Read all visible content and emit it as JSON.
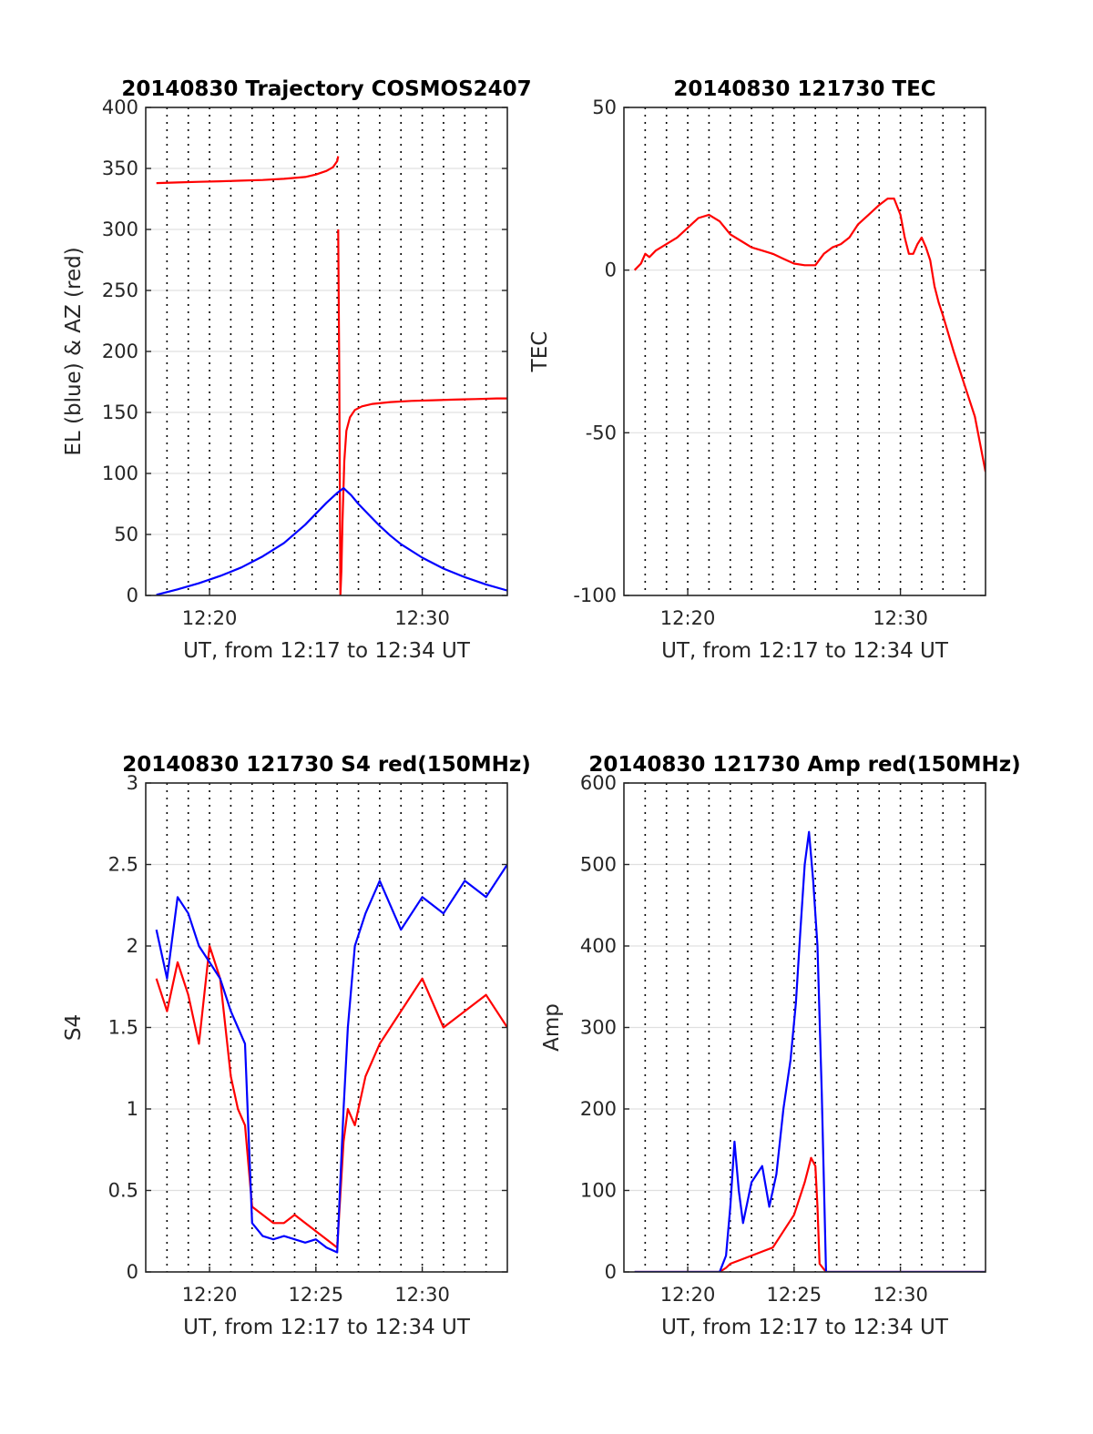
{
  "figure": {
    "panels": [
      {
        "id": "trajectory",
        "title": "20140830 Trajectory COSMOS2407",
        "xlabel": "UT, from 12:17 to 12:34 UT",
        "ylabel": "EL (blue) & AZ (red)",
        "ylim": [
          0,
          400
        ],
        "yticks": [
          "0",
          "50",
          "100",
          "150",
          "200",
          "250",
          "300",
          "350",
          "400"
        ],
        "xticks": [
          "12:20",
          "12:30"
        ]
      },
      {
        "id": "tec",
        "title": "20140830 121730 TEC",
        "xlabel": "UT, from 12:17 to 12:34 UT",
        "ylabel": "TEC",
        "ylim": [
          -100,
          50
        ],
        "yticks": [
          "-100",
          "-50",
          "0",
          "50"
        ],
        "xticks": [
          "12:20",
          "12:30"
        ]
      },
      {
        "id": "s4",
        "title": "20140830 121730 S4 red(150MHz)",
        "xlabel": "UT, from 12:17 to 12:34 UT",
        "ylabel": "S4",
        "ylim": [
          0,
          3
        ],
        "yticks": [
          "0",
          "0.5",
          "1",
          "1.5",
          "2",
          "2.5",
          "3"
        ],
        "xticks": [
          "12:20",
          "12:25",
          "12:30"
        ]
      },
      {
        "id": "amp",
        "title": "20140830 121730 Amp red(150MHz)",
        "xlabel": "UT, from 12:17 to 12:34 UT",
        "ylabel": "Amp",
        "ylim": [
          0,
          600
        ],
        "yticks": [
          "0",
          "100",
          "200",
          "300",
          "400",
          "500",
          "600"
        ],
        "xticks": [
          "12:20",
          "12:25",
          "12:30"
        ]
      }
    ]
  },
  "chart_data": [
    {
      "type": "line",
      "title": "20140830 Trajectory COSMOS2407",
      "xlabel": "UT, from 12:17 to 12:34 UT",
      "ylabel": "EL (blue) & AZ (red)",
      "xlim": [
        "12:17",
        "12:34"
      ],
      "ylim": [
        0,
        400
      ],
      "grid": true,
      "series": [
        {
          "color": "#ff0000",
          "segments": [
            {
              "x": [
                "12:17:30",
                "12:18:30",
                "12:19:30",
                "12:20:30",
                "12:21:30",
                "12:22:30",
                "12:23:30",
                "12:24:30",
                "12:25:00",
                "12:25:30",
                "12:25:48",
                "12:26:00",
                "12:26:03"
              ],
              "y": [
                338,
                338.5,
                339,
                339.5,
                340,
                340.5,
                341.5,
                343,
                345,
                348,
                351,
                356,
                360
              ]
            },
            {
              "x": [
                "12:26:03",
                "12:26:06",
                "12:26:09",
                "12:26:12",
                "12:26:15",
                "12:26:20",
                "12:26:26",
                "12:26:36",
                "12:26:50",
                "12:27:10",
                "12:27:40",
                "12:28:30",
                "12:29:30",
                "12:30:30",
                "12:31:30",
                "12:32:30",
                "12:33:30",
                "12:34:00"
              ],
              "y": [
                300,
                180,
                0,
                20,
                60,
                110,
                135,
                146,
                152,
                155,
                157,
                158.5,
                159.5,
                160,
                160.5,
                161,
                161.5,
                161.5
              ]
            }
          ]
        },
        {
          "color": "#0000ff",
          "segments": [
            {
              "x": [
                "12:17:30",
                "12:18:30",
                "12:19:30",
                "12:20:30",
                "12:21:30",
                "12:22:30",
                "12:23:30",
                "12:24:30",
                "12:25:00",
                "12:25:30",
                "12:26:00",
                "12:26:18",
                "12:26:40",
                "12:27:00",
                "12:27:30",
                "12:28:00",
                "12:28:30",
                "12:29:00",
                "12:30:00",
                "12:31:00",
                "12:32:00",
                "12:33:00",
                "12:34:00"
              ],
              "y": [
                0.5,
                5,
                10,
                16,
                23,
                32,
                43,
                58,
                67,
                76,
                84,
                88,
                82,
                75,
                66,
                57,
                49,
                42,
                31,
                22,
                15,
                9,
                4
              ]
            }
          ]
        }
      ]
    },
    {
      "type": "line",
      "title": "20140830 121730 TEC",
      "xlabel": "UT, from 12:17 to 12:34 UT",
      "ylabel": "TEC",
      "xlim": [
        "12:17",
        "12:34"
      ],
      "ylim": [
        -100,
        50
      ],
      "grid": true,
      "series": [
        {
          "color": "#ff0000",
          "segments": [
            {
              "x": [
                "12:17:30",
                "12:17:48",
                "12:18:00",
                "12:18:12",
                "12:18:30",
                "12:19:00",
                "12:19:30",
                "12:20:00",
                "12:20:30",
                "12:21:00",
                "12:21:30",
                "12:22:00",
                "12:22:30",
                "12:23:00",
                "12:23:30",
                "12:24:00",
                "12:24:30",
                "12:25:00",
                "12:25:30",
                "12:26:00",
                "12:26:24",
                "12:26:48",
                "12:27:12",
                "12:27:36",
                "12:28:00",
                "12:28:30",
                "12:29:00",
                "12:29:24",
                "12:29:42",
                "12:30:00",
                "12:30:12",
                "12:30:24",
                "12:30:36",
                "12:30:48",
                "12:31:00",
                "12:31:12",
                "12:31:24",
                "12:31:36",
                "12:31:48",
                "12:32:00",
                "12:32:30",
                "12:33:00",
                "12:33:30",
                "12:34:00"
              ],
              "y": [
                0,
                2,
                5,
                4,
                6,
                8,
                10,
                13,
                16,
                17,
                15,
                11,
                9,
                7,
                6,
                5,
                3.5,
                2,
                1.5,
                1.5,
                5,
                7,
                8,
                10,
                14,
                17,
                20,
                22,
                22,
                17,
                10,
                5,
                5,
                8,
                10,
                7,
                3,
                -5,
                -10,
                -14,
                -25,
                -35,
                -45,
                -62
              ]
            }
          ]
        }
      ]
    },
    {
      "type": "line",
      "title": "20140830 121730 S4 red(150MHz)",
      "xlabel": "UT, from 12:17 to 12:34 UT",
      "ylabel": "S4",
      "xlim": [
        "12:17",
        "12:34"
      ],
      "ylim": [
        0,
        3
      ],
      "grid": true,
      "series": [
        {
          "color": "#ff0000",
          "segments": [
            {
              "x": [
                "12:17:30",
                "12:18:00",
                "12:18:30",
                "12:19:00",
                "12:19:30",
                "12:20:00",
                "12:20:30",
                "12:21:00",
                "12:21:20",
                "12:21:40",
                "12:22:00",
                "12:22:30",
                "12:23:00",
                "12:23:30",
                "12:24:00",
                "12:24:30",
                "12:25:00",
                "12:25:30",
                "12:26:00",
                "12:26:18",
                "12:26:30",
                "12:26:50",
                "12:27:20",
                "12:28:00",
                "12:29:00",
                "12:30:00",
                "12:31:00",
                "12:32:00",
                "12:33:00",
                "12:34:00"
              ],
              "y": [
                1.8,
                1.6,
                1.9,
                1.7,
                1.4,
                2.0,
                1.8,
                1.2,
                1.0,
                0.9,
                0.4,
                0.35,
                0.3,
                0.3,
                0.35,
                0.3,
                0.25,
                0.2,
                0.15,
                0.8,
                1.0,
                0.9,
                1.2,
                1.4,
                1.6,
                1.8,
                1.5,
                1.6,
                1.7,
                1.5
              ]
            }
          ]
        },
        {
          "color": "#0000ff",
          "segments": [
            {
              "x": [
                "12:17:30",
                "12:18:00",
                "12:18:30",
                "12:19:00",
                "12:19:30",
                "12:20:00",
                "12:20:30",
                "12:21:00",
                "12:21:20",
                "12:21:40",
                "12:22:00",
                "12:22:30",
                "12:23:00",
                "12:23:30",
                "12:24:00",
                "12:24:30",
                "12:25:00",
                "12:25:30",
                "12:26:00",
                "12:26:18",
                "12:26:30",
                "12:26:50",
                "12:27:20",
                "12:28:00",
                "12:29:00",
                "12:30:00",
                "12:31:00",
                "12:32:00",
                "12:33:00",
                "12:34:00"
              ],
              "y": [
                2.1,
                1.8,
                2.3,
                2.2,
                2.0,
                1.9,
                1.8,
                1.6,
                1.5,
                1.4,
                0.3,
                0.22,
                0.2,
                0.22,
                0.2,
                0.18,
                0.2,
                0.15,
                0.12,
                1.0,
                1.5,
                2.0,
                2.2,
                2.4,
                2.1,
                2.3,
                2.2,
                2.4,
                2.3,
                2.5
              ]
            }
          ]
        }
      ]
    },
    {
      "type": "line",
      "title": "20140830 121730 Amp red(150MHz)",
      "xlabel": "UT, from 12:17 to 12:34 UT",
      "ylabel": "Amp",
      "xlim": [
        "12:17",
        "12:34"
      ],
      "ylim": [
        0,
        600
      ],
      "grid": true,
      "series": [
        {
          "color": "#ff0000",
          "segments": [
            {
              "x": [
                "12:17:30",
                "12:18:30",
                "12:19:30",
                "12:20:30",
                "12:21:30",
                "12:21:48",
                "12:22:00",
                "12:22:30",
                "12:23:00",
                "12:23:30",
                "12:24:00",
                "12:24:30",
                "12:25:00",
                "12:25:30",
                "12:25:48",
                "12:26:00",
                "12:26:06",
                "12:26:12",
                "12:26:30",
                "12:27:30",
                "12:28:30",
                "12:29:30",
                "12:30:30",
                "12:31:30",
                "12:32:30",
                "12:33:30",
                "12:34:00"
              ],
              "y": [
                0,
                0,
                0,
                0,
                0,
                5,
                10,
                15,
                20,
                25,
                30,
                50,
                70,
                110,
                140,
                130,
                80,
                10,
                0,
                0,
                0,
                0,
                0,
                0,
                0,
                0,
                0
              ]
            }
          ]
        },
        {
          "color": "#0000ff",
          "segments": [
            {
              "x": [
                "12:17:30",
                "12:18:30",
                "12:19:30",
                "12:20:30",
                "12:21:30",
                "12:21:48",
                "12:22:00",
                "12:22:12",
                "12:22:24",
                "12:22:36",
                "12:23:00",
                "12:23:30",
                "12:23:50",
                "12:24:10",
                "12:24:30",
                "12:24:50",
                "12:25:05",
                "12:25:18",
                "12:25:30",
                "12:25:42",
                "12:25:54",
                "12:26:06",
                "12:26:18",
                "12:26:30",
                "12:27:30",
                "12:28:30",
                "12:29:30",
                "12:30:30",
                "12:31:30",
                "12:32:30",
                "12:33:30",
                "12:34:00"
              ],
              "y": [
                0,
                0,
                0,
                0,
                0,
                20,
                80,
                160,
                100,
                60,
                110,
                130,
                80,
                120,
                200,
                260,
                330,
                420,
                500,
                540,
                480,
                400,
                220,
                0,
                0,
                0,
                0,
                0,
                0,
                0,
                0,
                0
              ]
            }
          ]
        }
      ]
    }
  ]
}
